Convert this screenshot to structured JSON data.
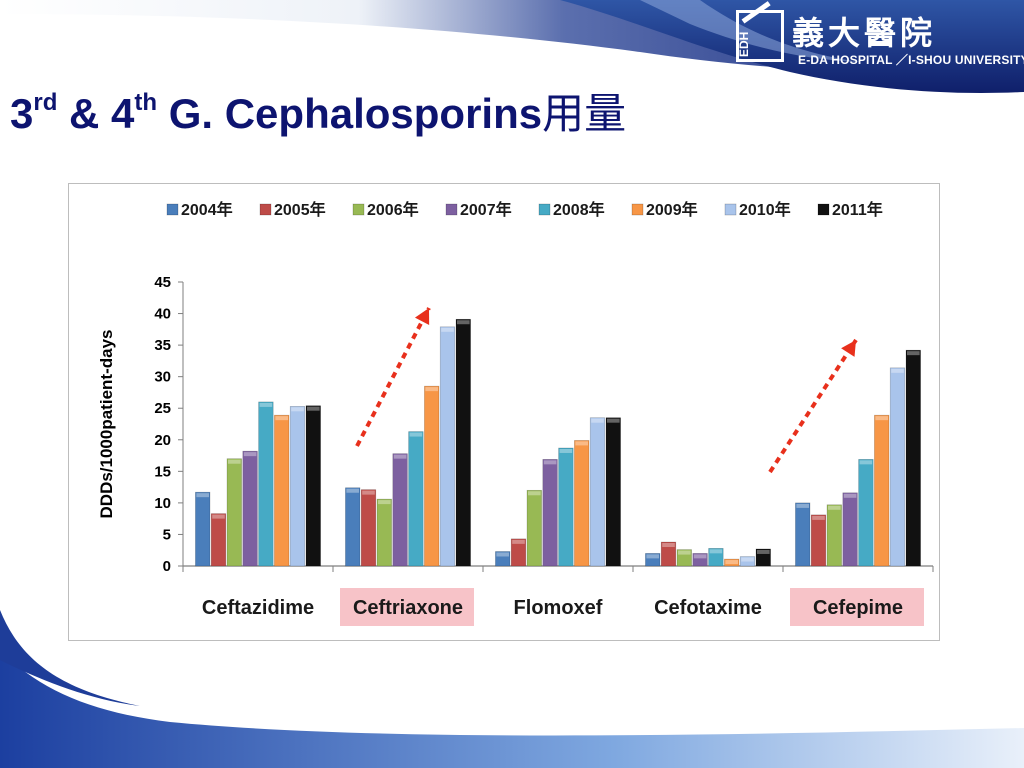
{
  "slide": {
    "title_main": "3",
    "title_sup1": "rd",
    "title_mid": " & 4",
    "title_sup2": "th",
    "title_rest": " G. Cephalosporins",
    "title_cjk": "用量"
  },
  "logo": {
    "mark_text": "EDH",
    "chinese_name": "義大醫院",
    "english_name": "E-DA HOSPITAL ／I-SHOU UNIVERSITY"
  },
  "colors": {
    "title": "#0d1470",
    "header_band": "#1a2f86",
    "highlight_box": "#f7c3c8",
    "trend_arrow": "#e8301c"
  },
  "chart_data": {
    "type": "bar",
    "ylabel": "DDDs/1000patient-days",
    "xlabel": "",
    "ylim": [
      0,
      45
    ],
    "yticks": [
      0,
      5,
      10,
      15,
      20,
      25,
      30,
      35,
      40,
      45
    ],
    "grid": false,
    "legend_position": "top",
    "categories": [
      "Ceftazidime",
      "Ceftriaxone",
      "Flomoxef",
      "Cefotaxime",
      "Cefepime"
    ],
    "highlighted_categories": [
      "Ceftriaxone",
      "Cefepime"
    ],
    "series": [
      {
        "name": "2004年",
        "color": "#4a7ebb",
        "values": [
          11.7,
          12.4,
          2.3,
          2.0,
          10.0
        ]
      },
      {
        "name": "2005年",
        "color": "#be4b48",
        "values": [
          8.3,
          12.1,
          4.3,
          3.8,
          8.1
        ]
      },
      {
        "name": "2006年",
        "color": "#98b954",
        "values": [
          17.0,
          10.6,
          12.0,
          2.6,
          9.7
        ]
      },
      {
        "name": "2007年",
        "color": "#7d60a0",
        "values": [
          18.2,
          17.8,
          16.9,
          2.0,
          11.6
        ]
      },
      {
        "name": "2008年",
        "color": "#46aac5",
        "values": [
          26.0,
          21.3,
          18.7,
          2.8,
          16.9
        ]
      },
      {
        "name": "2009年",
        "color": "#f79646",
        "values": [
          23.9,
          28.5,
          19.9,
          1.1,
          23.9
        ]
      },
      {
        "name": "2010年",
        "color": "#a9c4eb",
        "values": [
          25.3,
          37.9,
          23.5,
          1.5,
          31.4
        ]
      },
      {
        "name": "2011年",
        "color": "#111111",
        "values": [
          25.4,
          39.1,
          23.5,
          2.7,
          34.2
        ]
      }
    ]
  }
}
